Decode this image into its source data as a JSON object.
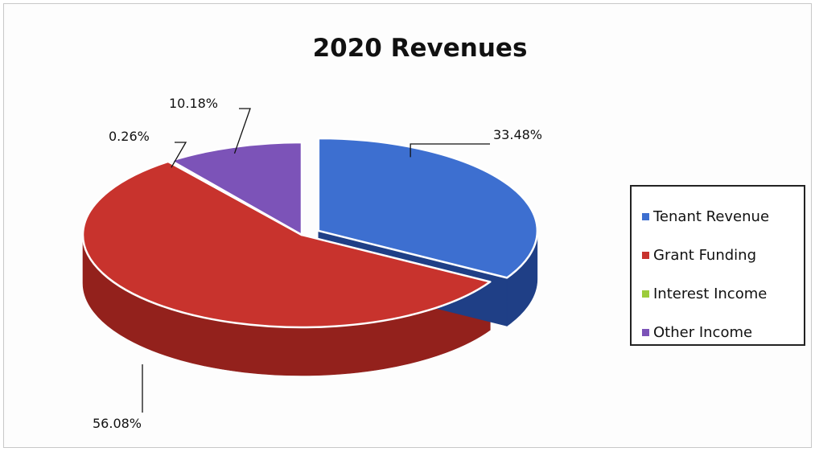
{
  "chart_data": {
    "type": "pie",
    "title": "2020 Revenues",
    "categories": [
      "Tenant Revenue",
      "Grant Funding",
      "Interest Income",
      "Other Income"
    ],
    "values": [
      33.48,
      56.08,
      0.26,
      10.18
    ],
    "data_labels": [
      "33.48%",
      "56.08%",
      "0.26%",
      "10.18%"
    ],
    "style": "3d-exploded",
    "legend": {
      "position": "right"
    },
    "colors": {
      "Tenant Revenue": {
        "top": "#3d6fd0",
        "side": "#1f3f86"
      },
      "Grant Funding": {
        "top": "#c8332d",
        "side": "#93211c"
      },
      "Interest Income": {
        "top": "#3a6b2a",
        "side": "#2a4f1d",
        "legend": "#9ccc3b"
      },
      "Other Income": {
        "top": "#7c53b8",
        "side": "#563689"
      }
    }
  }
}
